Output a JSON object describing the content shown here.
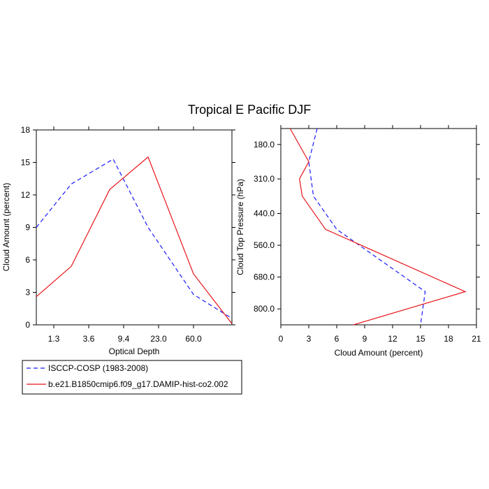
{
  "title": "Tropical E Pacific DJF",
  "chart_data": [
    {
      "type": "line",
      "xlabel": "Optical Depth",
      "ylabel": "Cloud Amount (percent)",
      "x_tick_labels": [
        "1.3",
        "3.6",
        "9.4",
        "23.0",
        "60.0"
      ],
      "x_tick_positions": [
        0.5,
        1.5,
        2.5,
        3.5,
        4.5
      ],
      "xlim": [
        0,
        5.6
      ],
      "ylim": [
        0,
        18
      ],
      "y_ticks": [
        0,
        3,
        6,
        9,
        12,
        15,
        18
      ],
      "series": [
        {
          "name": "ISCCP-COSP (1983-2008)",
          "color": "#1a1aff",
          "dash": true,
          "x": [
            0.0,
            1.0,
            2.2,
            3.2,
            4.5,
            5.6
          ],
          "y": [
            9.0,
            13.0,
            15.3,
            9.0,
            2.8,
            0.6
          ]
        },
        {
          "name": "b.e21.B1850cmip6.f09_g17.DAMIP-hist-co2.002",
          "color": "#e8141a",
          "dash": false,
          "x": [
            0.0,
            1.0,
            2.1,
            3.2,
            4.5,
            5.6
          ],
          "y": [
            2.6,
            5.4,
            12.5,
            15.5,
            4.7,
            0.1
          ]
        }
      ]
    },
    {
      "type": "line",
      "xlabel": "Cloud Amount (percent)",
      "ylabel": "Cloud Top Pressure (hPa)",
      "x_ticks": [
        0,
        3,
        6,
        9,
        12,
        15,
        18,
        21
      ],
      "xlim": [
        0,
        21
      ],
      "y_tick_labels": [
        "180.0",
        "310.0",
        "440.0",
        "560.0",
        "680.0",
        "800.0"
      ],
      "y_tick_positions": [
        180,
        310,
        440,
        560,
        680,
        800
      ],
      "ylim": [
        120,
        860
      ],
      "y_reversed": true,
      "series": [
        {
          "name": "ISCCP-COSP (1983-2008)",
          "color": "#1a1aff",
          "dash": true,
          "x": [
            3.9,
            3.0,
            3.5,
            6.0,
            15.5,
            15.0
          ],
          "y": [
            120,
            245,
            375,
            500,
            735,
            860
          ]
        },
        {
          "name": "b.e21.B1850cmip6.f09_g17.DAMIP-hist-co2.002",
          "color": "#e8141a",
          "dash": false,
          "x": [
            1.0,
            3.0,
            2.0,
            2.3,
            4.8,
            19.8,
            7.8
          ],
          "y": [
            120,
            245,
            310,
            375,
            500,
            735,
            860
          ]
        }
      ]
    }
  ],
  "legend": [
    {
      "label": "ISCCP-COSP (1983-2008)",
      "color": "#1a1aff",
      "dash": true
    },
    {
      "label": "b.e21.B1850cmip6.f09_g17.DAMIP-hist-co2.002",
      "color": "#e8141a",
      "dash": false
    }
  ]
}
